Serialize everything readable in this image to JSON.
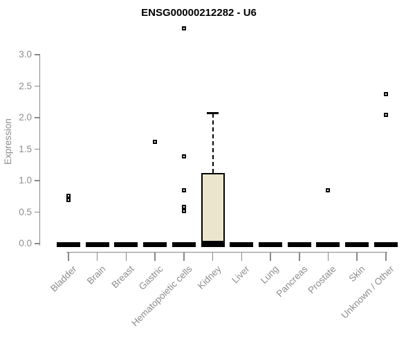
{
  "title": "ENSG00000212282 - U6",
  "chart_data": {
    "type": "boxplot",
    "title": "ENSG00000212282 - U6",
    "xlabel": "",
    "ylabel": "Expression",
    "ylim": [
      0.0,
      3.0
    ],
    "yticks": [
      0.0,
      0.5,
      1.0,
      1.5,
      2.0,
      2.5,
      3.0
    ],
    "grid": false,
    "x_label_rotation": 45,
    "categories": [
      "Bladder",
      "Brain",
      "Breast",
      "Gastric",
      "Hematopoietic cells",
      "Kidney",
      "Liver",
      "Lung",
      "Pancreas",
      "Prostate",
      "Skin",
      "Unknown / Other"
    ],
    "boxes": [
      {
        "category": "Bladder",
        "q1": 0,
        "median": 0,
        "q3": 0,
        "whisker_low": 0,
        "whisker_high": 0,
        "outliers": [
          0.76,
          0.69
        ]
      },
      {
        "category": "Brain",
        "q1": 0,
        "median": 0,
        "q3": 0,
        "whisker_low": 0,
        "whisker_high": 0,
        "outliers": []
      },
      {
        "category": "Breast",
        "q1": 0,
        "median": 0,
        "q3": 0,
        "whisker_low": 0,
        "whisker_high": 0,
        "outliers": []
      },
      {
        "category": "Gastric",
        "q1": 0,
        "median": 0,
        "q3": 0,
        "whisker_low": 0,
        "whisker_high": 0,
        "outliers": [
          1.62
        ]
      },
      {
        "category": "Hematopoietic cells",
        "q1": 0,
        "median": 0,
        "q3": 0,
        "whisker_low": 0,
        "whisker_high": 0,
        "outliers": [
          3.42,
          1.38,
          0.85,
          0.58,
          0.52
        ]
      },
      {
        "category": "Kidney",
        "q1": 0.02,
        "median": 0,
        "q3": 1.12,
        "whisker_low": 0,
        "whisker_high": 2.07,
        "outliers": []
      },
      {
        "category": "Liver",
        "q1": 0,
        "median": 0,
        "q3": 0,
        "whisker_low": 0,
        "whisker_high": 0,
        "outliers": []
      },
      {
        "category": "Lung",
        "q1": 0,
        "median": 0,
        "q3": 0,
        "whisker_low": 0,
        "whisker_high": 0,
        "outliers": []
      },
      {
        "category": "Pancreas",
        "q1": 0,
        "median": 0,
        "q3": 0,
        "whisker_low": 0,
        "whisker_high": 0,
        "outliers": []
      },
      {
        "category": "Prostate",
        "q1": 0,
        "median": 0,
        "q3": 0,
        "whisker_low": 0,
        "whisker_high": 0,
        "outliers": [
          0.85
        ]
      },
      {
        "category": "Skin",
        "q1": 0,
        "median": 0,
        "q3": 0,
        "whisker_low": 0,
        "whisker_high": 0,
        "outliers": []
      },
      {
        "category": "Unknown / Other",
        "q1": 0,
        "median": 0,
        "q3": 0,
        "whisker_low": 0,
        "whisker_high": 0,
        "outliers": [
          2.37,
          2.04
        ]
      }
    ],
    "colors": {
      "box_fill": "#ebe6cb",
      "box_border": "#000000",
      "median": "#000000",
      "outlier_fill": "#ffffff",
      "axis_line": "#888888",
      "text": "#8c8c8c",
      "title": "#000000"
    },
    "legend": null
  }
}
